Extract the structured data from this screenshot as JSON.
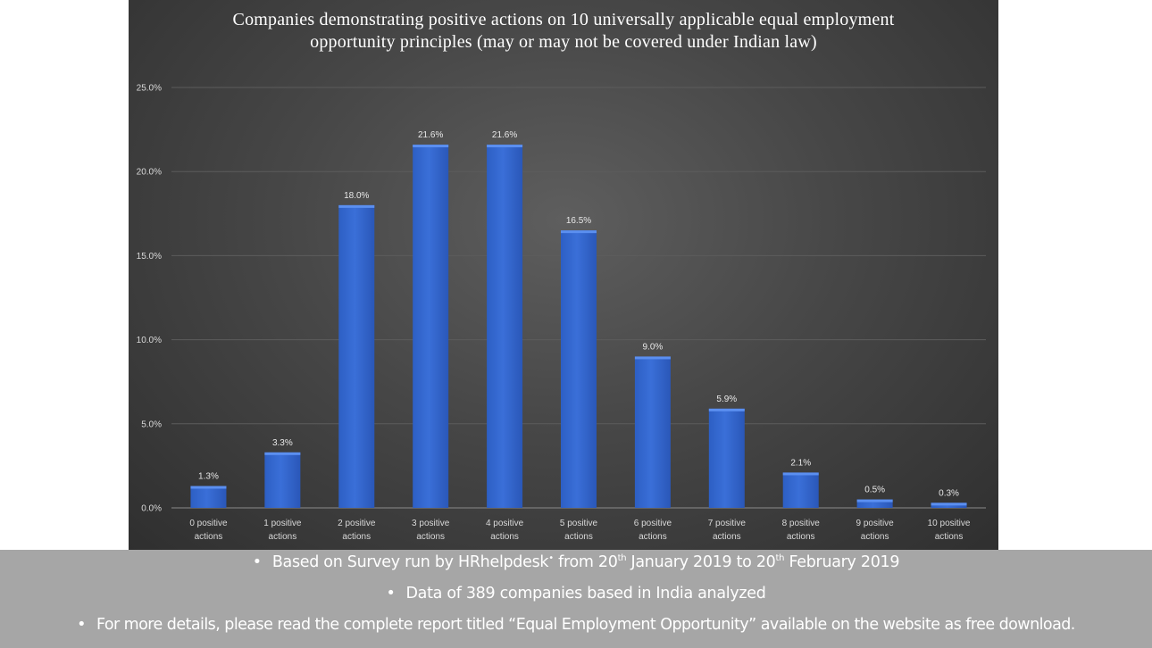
{
  "chart_data": {
    "type": "bar",
    "title": "Companies demonstrating positive actions on 10 universally applicable equal employment opportunity principles (may or may not be covered under Indian law)",
    "categories": [
      "0 positive actions",
      "1 positive actions",
      "2 positive actions",
      "3 positive actions",
      "4 positive actions",
      "5 positive actions",
      "6 positive actions",
      "7 positive actions",
      "8 positive actions",
      "9 positive actions",
      "10 positive actions"
    ],
    "category_lines": [
      [
        "0 positive",
        "actions"
      ],
      [
        "1 positive",
        "actions"
      ],
      [
        "2 positive",
        "actions"
      ],
      [
        "3 positive",
        "actions"
      ],
      [
        "4 positive",
        "actions"
      ],
      [
        "5 positive",
        "actions"
      ],
      [
        "6 positive",
        "actions"
      ],
      [
        "7 positive",
        "actions"
      ],
      [
        "8 positive",
        "actions"
      ],
      [
        "9 positive",
        "actions"
      ],
      [
        "10 positive",
        "actions"
      ]
    ],
    "values": [
      1.3,
      3.3,
      18.0,
      21.6,
      21.6,
      16.5,
      9.0,
      5.9,
      2.1,
      0.5,
      0.3
    ],
    "data_labels": [
      "1.3%",
      "3.3%",
      "18.0%",
      "21.6%",
      "21.6%",
      "16.5%",
      "9.0%",
      "5.9%",
      "2.1%",
      "0.5%",
      "0.3%"
    ],
    "ylim": [
      0,
      25
    ],
    "yticks": [
      0,
      5,
      10,
      15,
      20,
      25
    ],
    "ytick_labels": [
      "0.0%",
      "5.0%",
      "10.0%",
      "15.0%",
      "20.0%",
      "25.0%"
    ],
    "xlabel": "",
    "ylabel": "",
    "grid": true,
    "legend": "none",
    "colors": {
      "bar": "#3a6fd8",
      "bar_highlight": "#5b8ff0",
      "background": "#474747",
      "gridline": "#5c5c5c"
    }
  },
  "footer": {
    "bullet": "•",
    "note1_pre": "Based on Survey run by HRhelpdesk",
    "note1_sup1": "•",
    "note1_mid": " from 20",
    "note1_sup2": "th",
    "note1_mid2": " January 2019 to 20",
    "note1_sup3": "th",
    "note1_post": " February 2019",
    "note2": "Data of 389 companies based in India analyzed",
    "note3": "For more details, please read the complete report titled “Equal Employment Opportunity” available on the website as free download."
  },
  "colors": {
    "footer_bg": "#a6a6a6",
    "footer_text": "#ffffff"
  }
}
